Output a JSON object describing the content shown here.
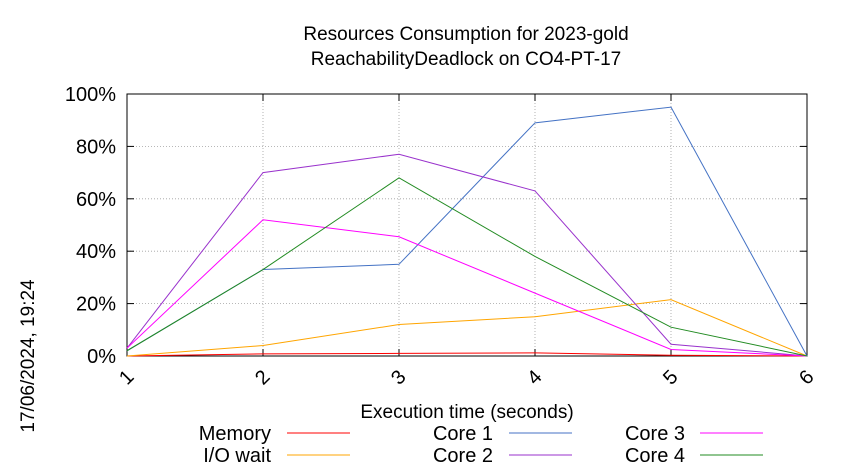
{
  "chart_data": {
    "type": "line",
    "title": "Resources Consumption for 2023-gold",
    "subtitle": "ReachabilityDeadlock on CO4-PT-17",
    "xlabel": "Execution time (seconds)",
    "ylabel": "",
    "side_label": "17/06/2024, 19:24",
    "x": [
      1,
      2,
      3,
      4,
      5,
      6
    ],
    "x_ticks": [
      "1",
      "2",
      "3",
      "4",
      "5",
      "6"
    ],
    "xlim": [
      1,
      6
    ],
    "ylim": [
      0,
      100
    ],
    "y_ticks": [
      {
        "value": 0,
        "label": "0%"
      },
      {
        "value": 20,
        "label": "20%"
      },
      {
        "value": 40,
        "label": "40%"
      },
      {
        "value": 60,
        "label": "60%"
      },
      {
        "value": 80,
        "label": "80%"
      },
      {
        "value": 100,
        "label": "100%"
      }
    ],
    "grid": true,
    "legend_position": "bottom",
    "series": [
      {
        "name": "Memory",
        "color": "#ff0000",
        "values": [
          0,
          0.8,
          1.0,
          1.2,
          0.3,
          0
        ]
      },
      {
        "name": "I/O wait",
        "color": "#ffa500",
        "values": [
          0,
          4,
          12,
          15,
          21.5,
          0
        ]
      },
      {
        "name": "Core 1",
        "color": "#4472c4",
        "values": [
          2,
          33,
          35,
          89,
          95,
          0
        ]
      },
      {
        "name": "Core 2",
        "color": "#9932cc",
        "values": [
          3,
          70,
          77,
          63,
          4.5,
          0
        ]
      },
      {
        "name": "Core 3",
        "color": "#ff00ff",
        "values": [
          3,
          52,
          45.5,
          24,
          2.5,
          0
        ]
      },
      {
        "name": "Core 4",
        "color": "#228b22",
        "values": [
          2,
          33,
          68,
          38,
          11,
          0
        ]
      }
    ]
  }
}
